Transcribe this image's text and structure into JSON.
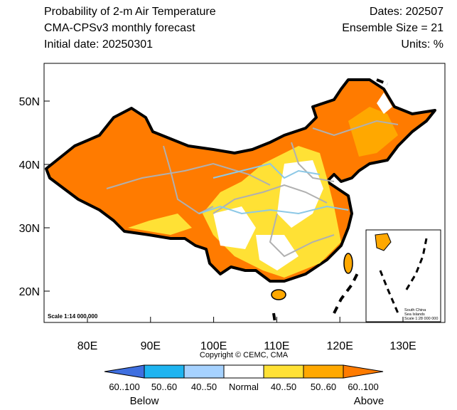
{
  "header": {
    "title_lines": [
      "Probability of 2-m Air Temperature",
      "CMA-CPSv3 monthly forecast",
      "Initial date: 20250301"
    ],
    "info_lines": [
      "Dates: 202507",
      "Ensemble Size = 21",
      "Units: %"
    ]
  },
  "map": {
    "lat_labels": [
      "50N",
      "40N",
      "30N",
      "20N"
    ],
    "lon_labels": [
      "80E",
      "90E",
      "100E",
      "110E",
      "120E",
      "130E"
    ],
    "scale": "Scale 1:14 000 000",
    "inset_lines": [
      "South China",
      "Sea Islands",
      "Scale 1:28 000 000"
    ]
  },
  "copyright": "Copyright © CEMC, CMA",
  "colorbar": {
    "labels": [
      "60..100",
      "50..60",
      "40..50",
      "Normal",
      "40..50",
      "50..60",
      "60..100"
    ],
    "colors": [
      "#3f6fe0",
      "#1eb4f0",
      "#a6d2ff",
      "#ffffff",
      "#ffe135",
      "#ffa800",
      "#ff7b00"
    ],
    "below": "Below",
    "above": "Above"
  }
}
